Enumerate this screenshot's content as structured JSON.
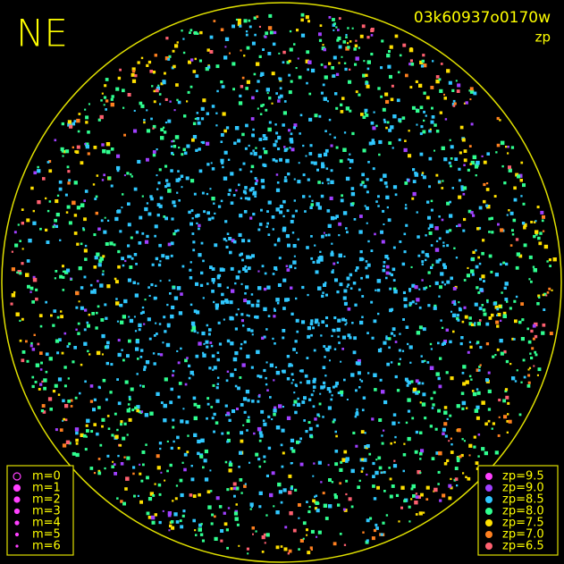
{
  "header": {
    "title": "NE",
    "frame_id": "03k60937o0170w",
    "subtitle": "zp"
  },
  "magnitude_legend": {
    "items": [
      "m=0",
      "m=1",
      "m=2",
      "m=3",
      "m=4",
      "m=5",
      "m=6"
    ]
  },
  "zp_legend": {
    "items": [
      {
        "label": "zp=9.5",
        "color": "#ff40ff"
      },
      {
        "label": "zp=9.0",
        "color": "#a040ff"
      },
      {
        "label": "zp=8.5",
        "color": "#30c8ff"
      },
      {
        "label": "zp=8.0",
        "color": "#30ff90"
      },
      {
        "label": "zp=7.5",
        "color": "#ffe000"
      },
      {
        "label": "zp=7.0",
        "color": "#ff8020"
      },
      {
        "label": "zp=6.5",
        "color": "#ff6070"
      }
    ]
  }
}
